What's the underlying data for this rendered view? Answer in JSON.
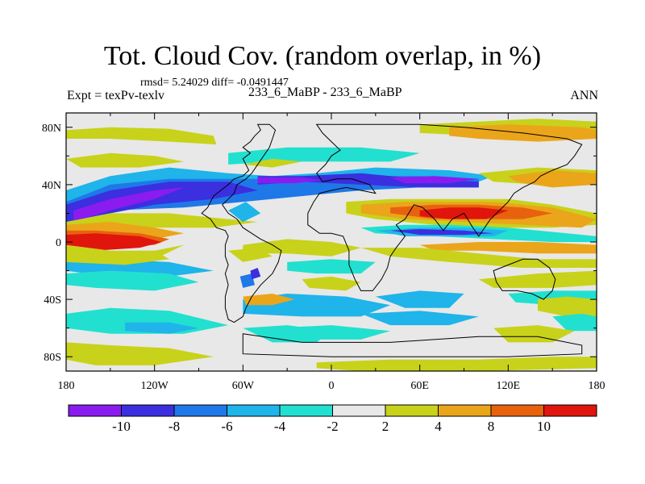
{
  "chart_data": {
    "type": "heatmap",
    "title": "Tot. Cloud Cov. (random overlap, in %)",
    "stats_text": "rmsd= 5.24029 diff= -0.0491447",
    "expt_label": "Expt = texPv-texlv",
    "case_label": "233_6_MaBP - 233_6_MaBP",
    "season_label": "ANN",
    "x_ticks": [
      {
        "value": -180,
        "label": "180"
      },
      {
        "value": -120,
        "label": "120W"
      },
      {
        "value": -60,
        "label": "60W"
      },
      {
        "value": 0,
        "label": "0"
      },
      {
        "value": 60,
        "label": "60E"
      },
      {
        "value": 120,
        "label": "120E"
      },
      {
        "value": 180,
        "label": "180"
      }
    ],
    "y_ticks": [
      {
        "value": 80,
        "label": "80N"
      },
      {
        "value": 40,
        "label": "40N"
      },
      {
        "value": 0,
        "label": "0"
      },
      {
        "value": -40,
        "label": "40S"
      },
      {
        "value": -80,
        "label": "80S"
      }
    ],
    "xlim": [
      -180,
      180
    ],
    "ylim": [
      -90,
      90
    ],
    "colorbar": {
      "colors": [
        "#8a1cf0",
        "#3b2fe0",
        "#1f78e8",
        "#1fb4ea",
        "#22e0cf",
        "#e8e8e8",
        "#c8d21a",
        "#eba51a",
        "#e8620e",
        "#e0150c"
      ],
      "labels": [
        {
          "boundary": 1,
          "text": "-10"
        },
        {
          "boundary": 2,
          "text": "-8"
        },
        {
          "boundary": 3,
          "text": "-6"
        },
        {
          "boundary": 4,
          "text": "-4"
        },
        {
          "boundary": 5,
          "text": "-2"
        },
        {
          "boundary": 6,
          "text": "2"
        },
        {
          "boundary": 7,
          "text": "4"
        },
        {
          "boundary": 8,
          "text": "8"
        },
        {
          "boundary": 9,
          "text": "10"
        }
      ]
    }
  }
}
